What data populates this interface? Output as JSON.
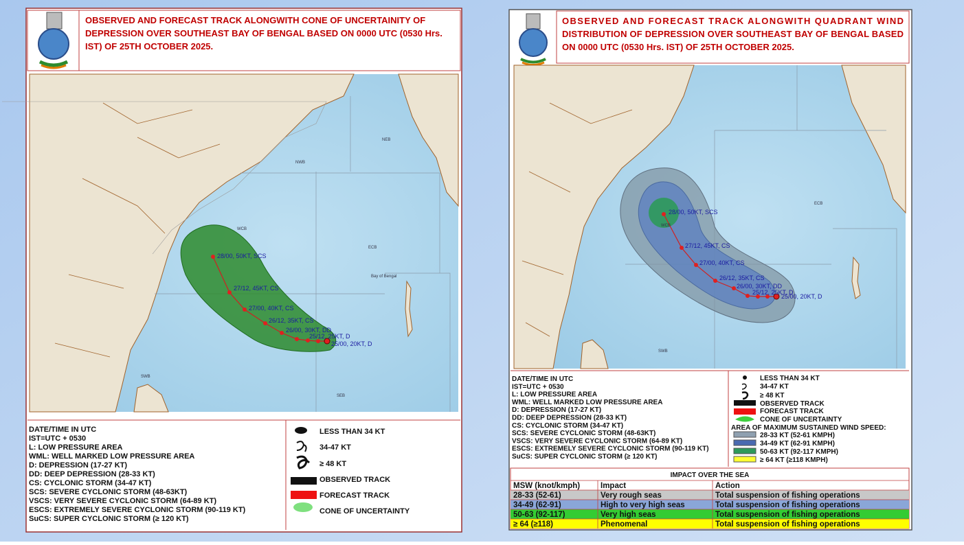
{
  "panels": [
    {
      "title": "OBSERVED AND FORECAST TRACK ALONGWITH CONE OF UNCERTAINITY OF DEPRESSION OVER SOUTHEAST BAY OF BENGAL BASED ON 0000 UTC (0530 Hrs. IST) OF 25TH OCTOBER 2025.",
      "track_points": [
        "28/00, 50KT, SCS",
        "27/12, 45KT, CS",
        "27/00, 40KT, CS",
        "26/12, 35KT, CS",
        "26/00, 30KT, DD",
        "25/12, 25KT, D",
        "25/00, 20KT, D"
      ],
      "regions": [
        "NWB",
        "NEB",
        "WCB",
        "ECB",
        "Bay of Bengal",
        "SWB",
        "SEB"
      ],
      "definitions": [
        "DATE/TIME IN UTC",
        "IST=UTC + 0530",
        "L: LOW PRESSURE AREA",
        "WML: WELL MARKED  LOW PRESSURE AREA",
        "D: DEPRESSION  (17-27  KT)",
        "DD: DEEP DEPRESSION  (28-33 KT)",
        "CS: CYCLONIC STORM (34-47 KT)",
        "SCS: SEVERE CYCLONIC STORM (48-63KT)",
        "VSCS: VERY SEVERE CYCLONIC STORM (64-89 KT)",
        "ESCS: EXTREMELY SEVERE CYCLONIC STORM (90-119 KT)",
        "SuCS: SUPER CYCLONIC STORM (≥ 120 KT)"
      ],
      "legend": [
        "LESS THAN 34 KT",
        "34-47 KT",
        "≥ 48 KT",
        "OBSERVED TRACK",
        "FORECAST TRACK",
        "CONE OF UNCERTAINTY"
      ]
    },
    {
      "title": "OBSERVED AND FORECAST TRACK ALONGWITH QUADRANT WIND DISTRIBUTION OF DEPRESSION OVER SOUTHEAST BAY OF BENGAL BASED ON 0000 UTC (0530 Hrs. IST) OF 25TH OCTOBER 2025.",
      "track_points": [
        "28/00, 50KT, SCS",
        "27/12, 45KT, CS",
        "27/00, 40KT, CS",
        "26/12, 35KT, CS",
        "26/00, 30KT, DD",
        "25/12, 25KT, D",
        "25/00, 20KT, D"
      ],
      "regions": [
        "WCB",
        "ECB",
        "SWB"
      ],
      "definitions": [
        "DATE/TIME IN UTC",
        "IST=UTC + 0530",
        "L: LOW PRESSURE AREA",
        "WML: WELL MARKED  LOW PRESSURE AREA",
        "D: DEPRESSION  (17-27  KT)",
        "DD: DEEP DEPRESSION  (28-33 KT)",
        "CS: CYCLONIC STORM (34-47 KT)",
        "SCS: SEVERE CYCLONIC STORM (48-63KT)",
        "VSCS: VERY SEVERE CYCLONIC STORM (64-89 KT)",
        "ESCS: EXTREMELY SEVERE CYCLONIC STORM (90-119 KT)",
        "SuCS: SUPER CYCLONIC STORM (≥ 120 KT)"
      ],
      "legend": [
        "LESS THAN 34 KT",
        "34-47 KT",
        "≥ 48 KT",
        "OBSERVED TRACK",
        "FORECAST TRACK",
        "CONE OF UNCERTAINTY"
      ],
      "wind_speed_title": "AREA  OF MAXIMUM SUSTAINED WIND SPEED:",
      "wind_speed": [
        "28-33 KT (52-61 KMPH)",
        "34-49 KT (62-91 KMPH)",
        "50-63 KT (92-117 KMPH)",
        "≥ 64 KT  (≥118 KMPH)"
      ]
    }
  ],
  "impact_table": {
    "title": "IMPACT OVER THE SEA",
    "header": [
      "MSW (knot/kmph)",
      "Impact",
      "Action"
    ],
    "rows": [
      [
        "28-33 (52-61)",
        "Very rough seas",
        "Total suspension of fishing operations"
      ],
      [
        "34-49 (62-91)",
        "High to very high seas",
        "Total suspension of fishing operations"
      ],
      [
        "50-63 (92-117)",
        "Very high seas",
        "Total suspension of fishing operations"
      ],
      [
        "≥ 64 (≥118)",
        "Phenomenal",
        "Total suspension of fishing operations"
      ]
    ]
  }
}
